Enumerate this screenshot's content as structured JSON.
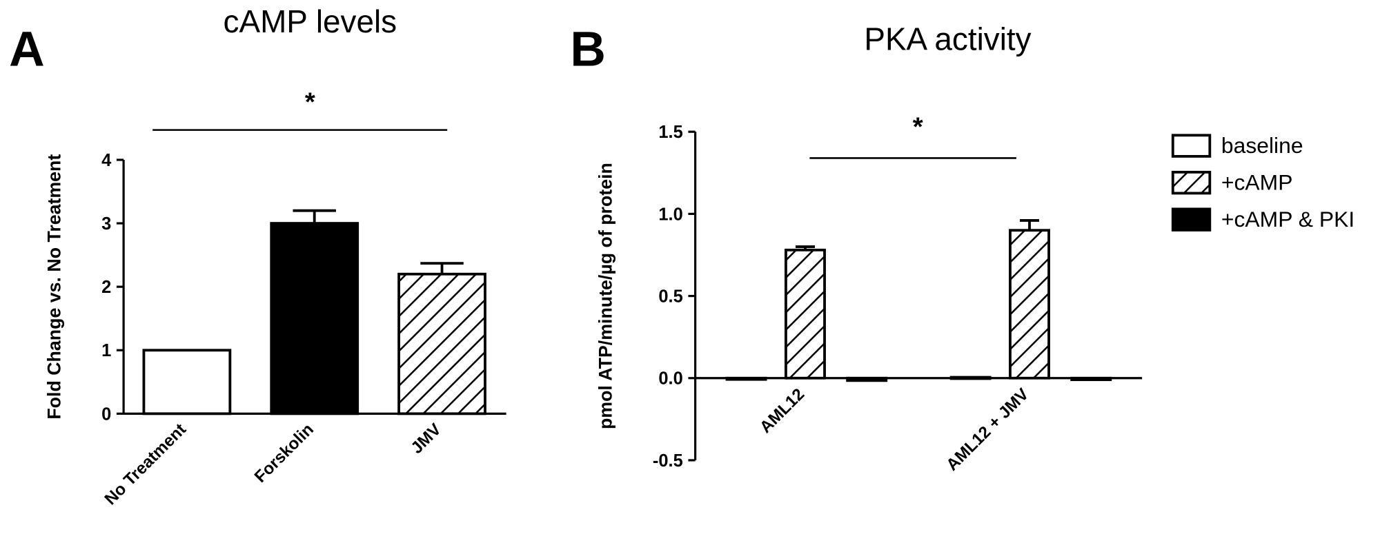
{
  "chart_data": [
    {
      "type": "bar",
      "panel_label": "A",
      "title": "cAMP levels",
      "y_label": "Fold Change vs. No Treatment",
      "categories": [
        "No Treatment",
        "Forskolin",
        "JMV"
      ],
      "values": [
        1,
        3,
        2.2
      ],
      "errors": [
        0,
        0.2,
        0.17
      ],
      "colors": [
        "#ffffff",
        "#000000",
        "#000000"
      ],
      "fills": [
        "solid",
        "solid",
        "hatch"
      ],
      "ylim": [
        0,
        4
      ],
      "yticks": [
        0,
        1,
        2,
        3,
        4
      ],
      "annotation": "*"
    },
    {
      "type": "bar",
      "panel_label": "B",
      "title": "PKA activity",
      "y_label": "pmol ATP/minute/µg of protein",
      "categories": [
        "AML12",
        "AML12 + JMV"
      ],
      "series": [
        {
          "name": "baseline",
          "color": "#ffffff",
          "fill": "solid",
          "values": [
            -0.005,
            0.005
          ],
          "errors": [
            0,
            0
          ]
        },
        {
          "name": "+cAMP",
          "color": "#000000",
          "fill": "hatch",
          "values": [
            0.78,
            0.9
          ],
          "errors": [
            0.02,
            0.06
          ]
        },
        {
          "name": "+cAMP & PKI",
          "color": "#000000",
          "fill": "solid",
          "values": [
            -0.015,
            -0.01
          ],
          "errors": [
            0,
            0
          ]
        }
      ],
      "ylim": [
        -0.5,
        1.5
      ],
      "yticks": [
        -0.5,
        {
          "value": 0,
          "label": "0.0"
        },
        0.5,
        {
          "value": 1,
          "label": "1.0"
        },
        1.5
      ],
      "annotation": "*",
      "legend": "right"
    }
  ]
}
